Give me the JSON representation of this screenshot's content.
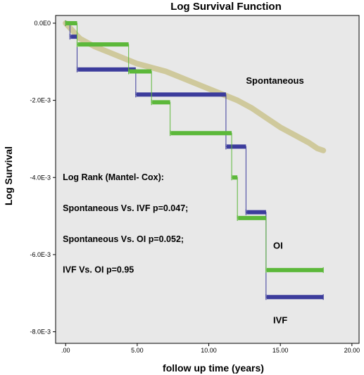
{
  "chart_data": {
    "type": "line",
    "title": "Log Survival Function",
    "xlabel": "follow up time (years)",
    "ylabel": "Log Survival",
    "xlim": [
      -0.7,
      20.5
    ],
    "ylim": [
      -0.0083,
      0.0002
    ],
    "x_ticks": [
      {
        "value": 0,
        "label": ".00"
      },
      {
        "value": 5,
        "label": "5.00"
      },
      {
        "value": 10,
        "label": "10.00"
      },
      {
        "value": 15,
        "label": "15.00"
      },
      {
        "value": 20,
        "label": "20.00"
      }
    ],
    "y_ticks": [
      {
        "value": 0,
        "label": "0.0E0"
      },
      {
        "value": -0.002,
        "label": "-2.0E-3"
      },
      {
        "value": -0.004,
        "label": "-4.0E-3"
      },
      {
        "value": -0.006,
        "label": "-6.0E-3"
      },
      {
        "value": -0.008,
        "label": "-8.0E-3"
      }
    ],
    "plot_background": "#e8e8e8",
    "series": [
      {
        "name": "Spontaneous",
        "color": "#cfc99c",
        "step": false,
        "x": [
          0,
          0.5,
          1,
          2,
          3,
          4,
          5,
          6,
          7,
          8,
          9,
          10,
          11,
          12,
          13,
          14,
          15,
          16,
          17,
          17.6,
          18
        ],
        "y": [
          0,
          -0.0002,
          -0.0004,
          -0.0006,
          -0.00075,
          -0.0009,
          -0.00105,
          -0.00115,
          -0.00125,
          -0.0014,
          -0.00155,
          -0.0017,
          -0.00185,
          -0.002,
          -0.0022,
          -0.00245,
          -0.0027,
          -0.0029,
          -0.0031,
          -0.00325,
          -0.0033
        ]
      },
      {
        "name": "IVF",
        "color": "#3c3c9c",
        "step": true,
        "x": [
          0,
          0.3,
          0.8,
          4.9,
          11.2,
          12.6,
          14,
          18
        ],
        "y": [
          0,
          -0.00035,
          -0.0012,
          -0.00185,
          -0.0032,
          -0.0049,
          -0.0071,
          -0.0071
        ]
      },
      {
        "name": "OI",
        "color": "#5cb83a",
        "step": true,
        "x": [
          0,
          0.8,
          4.4,
          6,
          7.3,
          11.6,
          12,
          14,
          18
        ],
        "y": [
          0,
          -0.00055,
          -0.00125,
          -0.00205,
          -0.00285,
          -0.004,
          -0.00505,
          -0.0064,
          -0.0064
        ]
      }
    ],
    "series_labels": [
      {
        "text": "Spontaneous",
        "x": 12.6,
        "y": -0.00157
      },
      {
        "text": "OI",
        "x": 14.5,
        "y": -0.00585
      },
      {
        "text": "IVF",
        "x": 14.5,
        "y": -0.00778
      }
    ],
    "annotations": [
      {
        "text": "Log Rank (Mantel- Cox):",
        "x": -0.2,
        "y": -0.00407
      },
      {
        "text": "Spontaneous Vs. IVF p=0.047;",
        "x": -0.2,
        "y": -0.00487
      },
      {
        "text": "Spontaneous Vs. OI p=0.052;",
        "x": -0.2,
        "y": -0.00567
      },
      {
        "text": "IVF Vs. OI p=0.95",
        "x": -0.2,
        "y": -0.00647
      }
    ]
  }
}
